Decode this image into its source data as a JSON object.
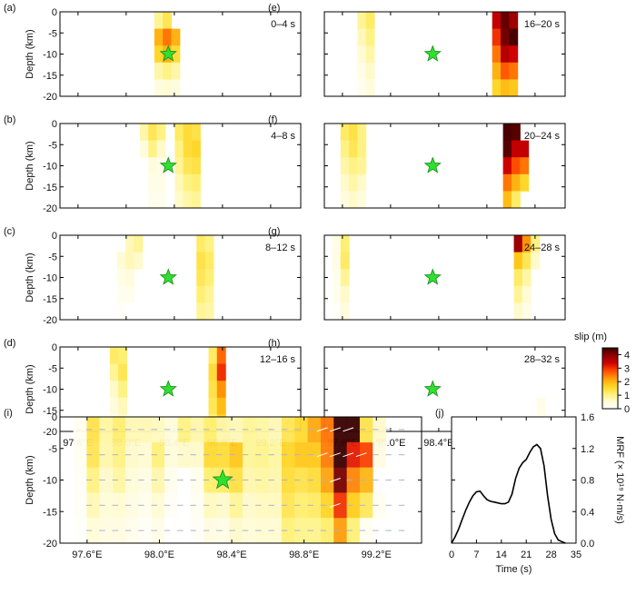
{
  "chart_data": {
    "type": "heatmap",
    "description_units": {
      "lon": "degrees E",
      "depth": "km",
      "slip": "m"
    },
    "x_range": [
      97.45,
      99.45
    ],
    "y_range": [
      -20,
      0
    ],
    "y_ticks": [
      0,
      -5,
      -10,
      -15,
      -20
    ],
    "y_tick_labels": [
      "0",
      "-5",
      "-10",
      "-15",
      "-20"
    ],
    "x_ticks": [
      97.6,
      98.0,
      98.4,
      98.8,
      99.2
    ],
    "x_tick_labels": [
      "97.6°E",
      "98.0°E",
      "98.4°E",
      "98.8°E",
      "99.2°E"
    ],
    "ylabel": "Depth (km)",
    "hypocenter": {
      "lon": 98.35,
      "depth": -10
    },
    "colorbar": {
      "label": "slip (m)",
      "range": [
        0,
        4.5
      ],
      "ticks": [
        0,
        1,
        2,
        3,
        4
      ],
      "tick_labels": [
        "0",
        "1",
        "2",
        "3",
        "4"
      ],
      "colors": [
        "#ffffff",
        "#fffbd0",
        "#ffef70",
        "#ffd21e",
        "#ff9a0a",
        "#ff4a00",
        "#d10000",
        "#8c0000",
        "#3a0000"
      ]
    },
    "panels": [
      {
        "letter": "(a)",
        "time": "0–4 s",
        "cells": [
          [
            98.27,
            0,
            0.9
          ],
          [
            98.27,
            -4,
            2.0
          ],
          [
            98.27,
            -8,
            1.6
          ],
          [
            98.27,
            -12,
            0.8
          ],
          [
            98.27,
            -16,
            0.4
          ],
          [
            98.34,
            0,
            1.3
          ],
          [
            98.34,
            -4,
            2.5
          ],
          [
            98.34,
            -8,
            2.0
          ],
          [
            98.34,
            -12,
            1.0
          ],
          [
            98.34,
            -16,
            0.5
          ],
          [
            98.41,
            -4,
            2.0
          ],
          [
            98.41,
            -8,
            1.5
          ],
          [
            98.41,
            -12,
            0.8
          ],
          [
            98.41,
            -16,
            0.4
          ]
        ]
      },
      {
        "letter": "(b)",
        "time": "4–8 s",
        "cells": [
          [
            98.15,
            0,
            0.8
          ],
          [
            98.15,
            -4,
            0.4
          ],
          [
            98.22,
            0,
            1.3
          ],
          [
            98.22,
            -4,
            1.0
          ],
          [
            98.22,
            -8,
            0.4
          ],
          [
            98.22,
            -12,
            0.3
          ],
          [
            98.22,
            -16,
            0.2
          ],
          [
            98.29,
            0,
            1.0
          ],
          [
            98.29,
            -4,
            0.6
          ],
          [
            98.29,
            -8,
            0.3
          ],
          [
            98.29,
            -12,
            0.3
          ],
          [
            98.29,
            -16,
            0.2
          ],
          [
            98.44,
            0,
            1.2
          ],
          [
            98.44,
            -4,
            1.0
          ],
          [
            98.44,
            -8,
            0.9
          ],
          [
            98.44,
            -12,
            0.7
          ],
          [
            98.44,
            -16,
            0.6
          ],
          [
            98.51,
            0,
            1.5
          ],
          [
            98.51,
            -4,
            1.5
          ],
          [
            98.51,
            -8,
            1.3
          ],
          [
            98.51,
            -12,
            1.0
          ],
          [
            98.51,
            -16,
            0.8
          ],
          [
            98.58,
            0,
            1.4
          ],
          [
            98.58,
            -4,
            1.6
          ],
          [
            98.58,
            -8,
            1.4
          ],
          [
            98.58,
            -12,
            1.1
          ],
          [
            98.58,
            -16,
            0.9
          ]
        ]
      },
      {
        "letter": "(c)",
        "time": "8–12 s",
        "cells": [
          [
            97.96,
            -4,
            0.5
          ],
          [
            97.96,
            -8,
            0.3
          ],
          [
            97.96,
            -12,
            0.2
          ],
          [
            97.96,
            -16,
            0.1
          ],
          [
            98.03,
            0,
            0.7
          ],
          [
            98.03,
            -4,
            0.7
          ],
          [
            98.03,
            -8,
            0.4
          ],
          [
            98.03,
            -12,
            0.2
          ],
          [
            98.1,
            0,
            0.9
          ],
          [
            98.1,
            -4,
            0.6
          ],
          [
            98.62,
            0,
            1.2
          ],
          [
            98.62,
            -4,
            1.4
          ],
          [
            98.62,
            -8,
            1.3
          ],
          [
            98.62,
            -12,
            1.1
          ],
          [
            98.62,
            -16,
            0.9
          ],
          [
            98.69,
            0,
            1.0
          ],
          [
            98.69,
            -4,
            1.2
          ],
          [
            98.69,
            -8,
            1.1
          ],
          [
            98.69,
            -12,
            0.9
          ],
          [
            98.69,
            -16,
            0.8
          ]
        ]
      },
      {
        "letter": "(d)",
        "time": "12–16 s",
        "cells": [
          [
            97.9,
            0,
            1.2
          ],
          [
            97.9,
            -4,
            0.9
          ],
          [
            97.9,
            -8,
            0.6
          ],
          [
            97.9,
            -12,
            0.4
          ],
          [
            97.9,
            -16,
            0.2
          ],
          [
            97.97,
            0,
            1.1
          ],
          [
            97.97,
            -4,
            1.3
          ],
          [
            97.97,
            -8,
            1.0
          ],
          [
            97.97,
            -12,
            0.7
          ],
          [
            97.97,
            -16,
            0.4
          ],
          [
            98.72,
            0,
            1.2
          ],
          [
            98.72,
            -4,
            1.5
          ],
          [
            98.72,
            -8,
            1.4
          ],
          [
            98.72,
            -12,
            1.3
          ],
          [
            98.72,
            -16,
            1.0
          ],
          [
            98.79,
            0,
            2.6
          ],
          [
            98.79,
            -4,
            3.0
          ],
          [
            98.79,
            -8,
            2.3
          ],
          [
            98.79,
            -12,
            1.9
          ],
          [
            98.79,
            -16,
            1.6
          ]
        ]
      },
      {
        "letter": "(e)",
        "time": "16–20 s",
        "cells": [
          [
            97.76,
            0,
            0.9
          ],
          [
            97.76,
            -4,
            0.7
          ],
          [
            97.76,
            -8,
            0.5
          ],
          [
            97.76,
            -12,
            0.3
          ],
          [
            97.76,
            -16,
            0.2
          ],
          [
            97.83,
            0,
            1.2
          ],
          [
            97.83,
            -4,
            1.0
          ],
          [
            97.83,
            -8,
            0.8
          ],
          [
            97.83,
            -12,
            0.6
          ],
          [
            97.83,
            -16,
            0.4
          ],
          [
            98.88,
            0,
            3.5
          ],
          [
            98.88,
            -4,
            3.0
          ],
          [
            98.88,
            -8,
            2.5
          ],
          [
            98.88,
            -12,
            2.0
          ],
          [
            98.88,
            -16,
            1.6
          ],
          [
            98.95,
            0,
            4.2
          ],
          [
            98.95,
            -4,
            4.1
          ],
          [
            98.95,
            -8,
            3.6
          ],
          [
            98.95,
            -12,
            2.7
          ],
          [
            98.95,
            -16,
            1.9
          ],
          [
            99.02,
            0,
            3.8
          ],
          [
            99.02,
            -4,
            4.4
          ],
          [
            99.02,
            -8,
            3.4
          ],
          [
            99.02,
            -12,
            2.5
          ],
          [
            99.02,
            -16,
            1.8
          ]
        ]
      },
      {
        "letter": "(f)",
        "time": "20–24 s",
        "cells": [
          [
            97.62,
            0,
            1.2
          ],
          [
            97.62,
            -4,
            1.0
          ],
          [
            97.62,
            -8,
            0.8
          ],
          [
            97.62,
            -12,
            0.6
          ],
          [
            97.62,
            -16,
            0.4
          ],
          [
            97.69,
            0,
            1.4
          ],
          [
            97.69,
            -4,
            1.3
          ],
          [
            97.69,
            -8,
            1.0
          ],
          [
            97.69,
            -12,
            0.8
          ],
          [
            97.69,
            -16,
            0.6
          ],
          [
            97.76,
            0,
            1.0
          ],
          [
            97.76,
            -4,
            1.0
          ],
          [
            97.76,
            -8,
            0.9
          ],
          [
            97.76,
            -12,
            0.6
          ],
          [
            97.76,
            -16,
            0.4
          ],
          [
            98.97,
            0,
            4.4
          ],
          [
            98.97,
            -4,
            4.3
          ],
          [
            98.97,
            -8,
            3.4
          ],
          [
            98.97,
            -12,
            2.5
          ],
          [
            98.97,
            -16,
            1.9
          ],
          [
            99.04,
            0,
            4.3
          ],
          [
            99.04,
            -4,
            3.5
          ],
          [
            99.04,
            -8,
            2.8
          ],
          [
            99.04,
            -12,
            2.0
          ],
          [
            99.04,
            -16,
            1.2
          ],
          [
            99.11,
            -4,
            3.5
          ],
          [
            99.11,
            -8,
            2.5
          ],
          [
            99.11,
            -12,
            1.6
          ]
        ]
      },
      {
        "letter": "(g)",
        "time": "24–28 s",
        "cells": [
          [
            97.55,
            0,
            0.3
          ],
          [
            97.55,
            -4,
            0.3
          ],
          [
            97.55,
            -8,
            0.2
          ],
          [
            97.55,
            -12,
            0.2
          ],
          [
            97.55,
            -16,
            0.1
          ],
          [
            97.62,
            0,
            1.1
          ],
          [
            97.62,
            -4,
            1.2
          ],
          [
            97.62,
            -8,
            0.9
          ],
          [
            97.62,
            -12,
            0.6
          ],
          [
            97.62,
            -16,
            0.4
          ],
          [
            99.06,
            0,
            3.8
          ],
          [
            99.06,
            -4,
            1.8
          ],
          [
            99.06,
            -8,
            1.2
          ],
          [
            99.06,
            -12,
            0.9
          ],
          [
            99.06,
            -16,
            0.6
          ],
          [
            99.13,
            0,
            2.3
          ],
          [
            99.13,
            -4,
            1.3
          ],
          [
            99.13,
            -8,
            0.8
          ],
          [
            99.13,
            -12,
            0.5
          ],
          [
            99.13,
            -16,
            0.3
          ],
          [
            99.2,
            0,
            1.0
          ],
          [
            99.2,
            -4,
            0.6
          ]
        ]
      },
      {
        "letter": "(h)",
        "time": "28–32 s",
        "cells": [
          [
            99.25,
            -12,
            0.3
          ]
        ]
      }
    ],
    "cumulative_panel": {
      "letter": "(i)"
    },
    "mrf": {
      "letter": "(j)",
      "type": "line",
      "xlabel": "Time (s)",
      "ylabel": "MRF (× 10¹⁹ N·m/s)",
      "xlim": [
        0,
        35
      ],
      "ylim": [
        0,
        1.6
      ],
      "x_ticks": [
        0,
        7,
        14,
        21,
        28,
        35
      ],
      "y_ticks": [
        0.0,
        0.4,
        0.8,
        1.2,
        1.6
      ],
      "y_tick_labels": [
        "0.0",
        "0.4",
        "0.8",
        "1.2",
        "1.6"
      ],
      "x": [
        0,
        1,
        2,
        3,
        4,
        5,
        6,
        7,
        8,
        9,
        10,
        11,
        12,
        13,
        14,
        15,
        16,
        17,
        18,
        19,
        20,
        21,
        22,
        23,
        24,
        25,
        26,
        27,
        28,
        29,
        30,
        31,
        32
      ],
      "y": [
        0.0,
        0.08,
        0.18,
        0.3,
        0.42,
        0.52,
        0.6,
        0.65,
        0.66,
        0.6,
        0.55,
        0.53,
        0.52,
        0.51,
        0.5,
        0.5,
        0.52,
        0.62,
        0.82,
        0.95,
        1.02,
        1.06,
        1.15,
        1.22,
        1.25,
        1.2,
        0.98,
        0.6,
        0.3,
        0.12,
        0.04,
        0.02,
        0.0
      ]
    }
  }
}
